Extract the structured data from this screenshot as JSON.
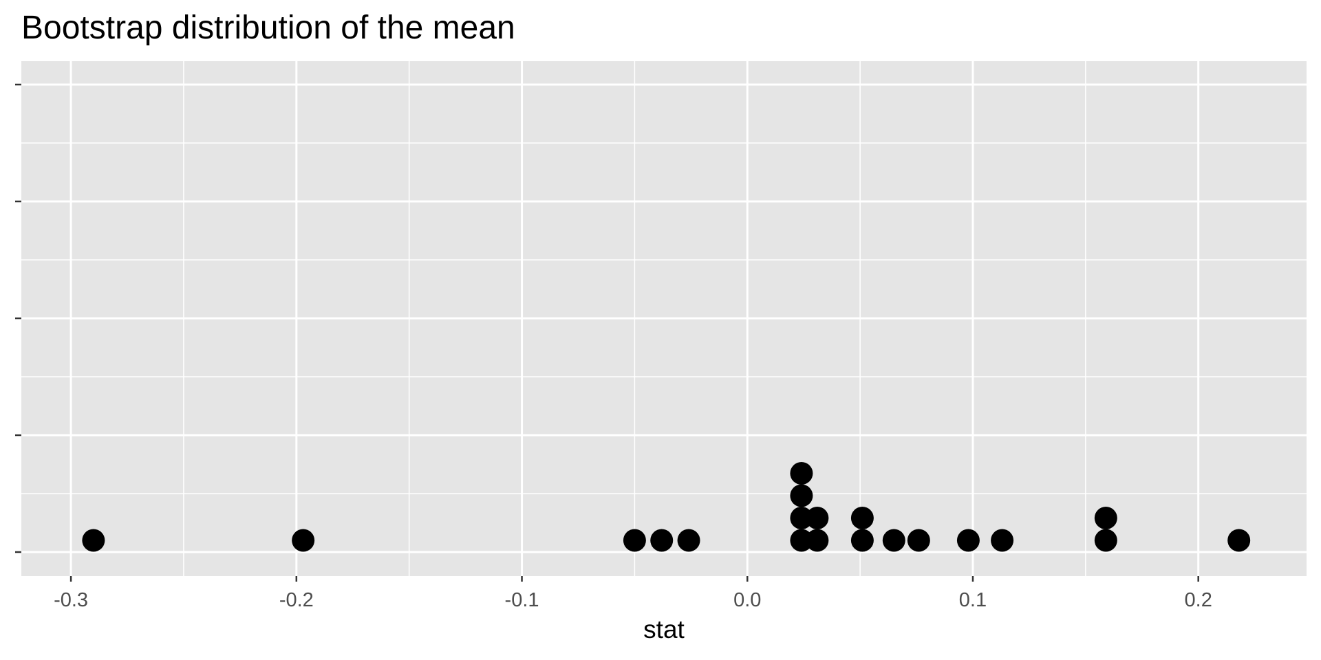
{
  "chart_data": {
    "type": "dotplot",
    "title": "Bootstrap distribution of the mean",
    "xlabel": "stat",
    "ylabel": "",
    "xlim": [
      -0.322,
      0.248
    ],
    "x_ticks": [
      -0.3,
      -0.2,
      -0.1,
      0.0,
      0.1,
      0.2
    ],
    "x_tick_labels": [
      "-0.3",
      "-0.2",
      "-0.1",
      "0.0",
      "0.1",
      "0.2"
    ],
    "y_tick_labels": [
      "",
      "",
      "",
      "",
      ""
    ],
    "grid": true,
    "legend": "none",
    "dot_color": "#000000",
    "panel_background": "#e5e5e5",
    "grid_color": "#ffffff",
    "points": [
      {
        "x": -0.29,
        "count": 1
      },
      {
        "x": -0.197,
        "count": 1
      },
      {
        "x": -0.05,
        "count": 1
      },
      {
        "x": -0.038,
        "count": 1
      },
      {
        "x": -0.026,
        "count": 1
      },
      {
        "x": 0.024,
        "count": 4
      },
      {
        "x": 0.031,
        "count": 2
      },
      {
        "x": 0.051,
        "count": 2
      },
      {
        "x": 0.065,
        "count": 1
      },
      {
        "x": 0.076,
        "count": 1
      },
      {
        "x": 0.098,
        "count": 1
      },
      {
        "x": 0.113,
        "count": 1
      },
      {
        "x": 0.159,
        "count": 2
      },
      {
        "x": 0.218,
        "count": 1
      }
    ]
  }
}
